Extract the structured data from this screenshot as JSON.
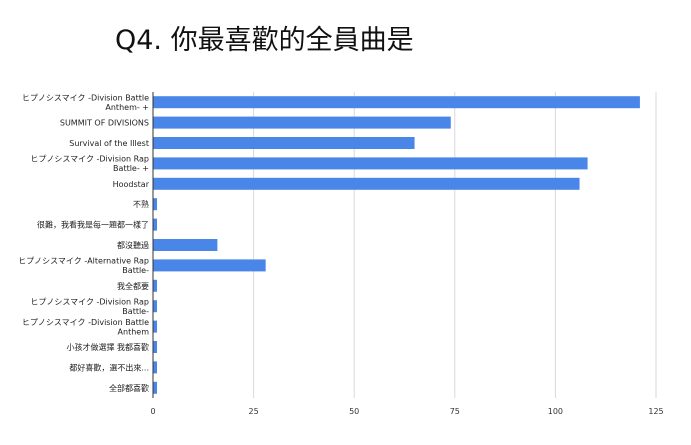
{
  "chart_data": {
    "type": "bar",
    "orientation": "horizontal",
    "title": "Q4. 你最喜歡的全員曲是",
    "xlabel": "",
    "ylabel": "",
    "xlim": [
      0,
      125
    ],
    "ticks": [
      0,
      25,
      50,
      75,
      100,
      125
    ],
    "grid": true,
    "legend": "none",
    "bar_color": "#4a86e8",
    "categories": [
      [
        "ヒプノシスマイク -Division Battle",
        "Anthem- +"
      ],
      [
        "SUMMIT OF DIVISIONS"
      ],
      [
        "Survival of the Illest"
      ],
      [
        "ヒプノシスマイク -Division Rap",
        "Battle- +"
      ],
      [
        "Hoodstar"
      ],
      [
        "不熟"
      ],
      [
        "很難，我看我是每一題都一樣了"
      ],
      [
        "都沒聽過"
      ],
      [
        "ヒプノシスマイク -Alternative Rap",
        "Battle-"
      ],
      [
        "我全都要"
      ],
      [
        "ヒプノシスマイク -Division Rap",
        "Battle-"
      ],
      [
        "ヒプノシスマイク -Division Battle",
        "Anthem"
      ],
      [
        "小孩才做選擇 我都喜歡"
      ],
      [
        "都好喜歡，選不出來..."
      ],
      [
        "全部都喜歡"
      ]
    ],
    "values": [
      121,
      74,
      65,
      108,
      106,
      1,
      1,
      16,
      28,
      1,
      1,
      1,
      1,
      1,
      1
    ]
  }
}
